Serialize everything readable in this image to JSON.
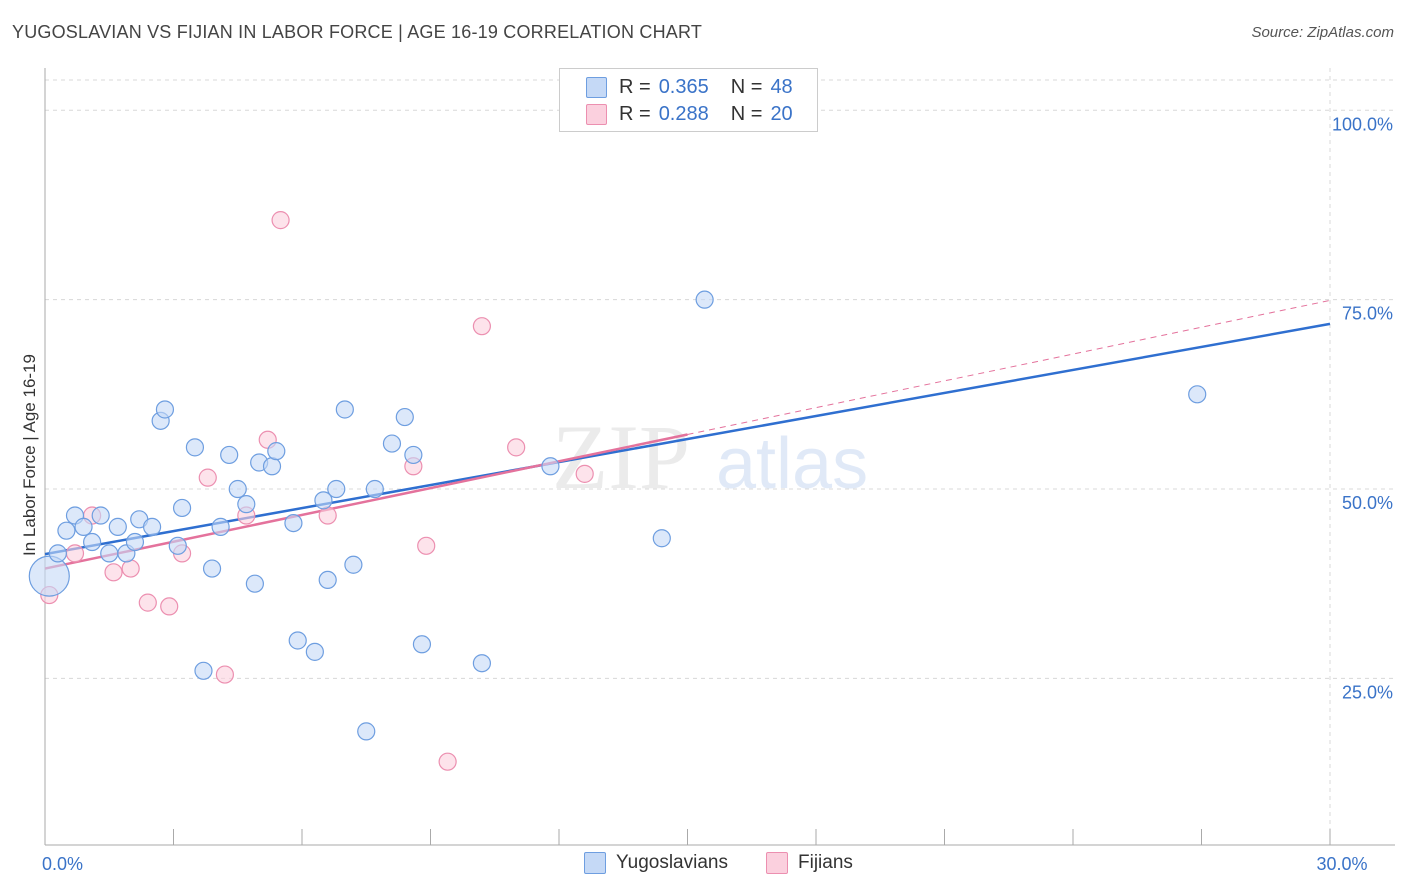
{
  "header": {
    "title": "YUGOSLAVIAN VS FIJIAN IN LABOR FORCE | AGE 16-19 CORRELATION CHART",
    "source": "Source: ZipAtlas.com"
  },
  "watermark": {
    "zip": "ZIP",
    "atlas": "atlas"
  },
  "legend": {
    "rows": [
      {
        "r_label": "R =",
        "r_value": "0.365",
        "n_label": "N =",
        "n_value": "48"
      },
      {
        "r_label": "R =",
        "r_value": "0.288",
        "n_label": "N =",
        "n_value": "20"
      }
    ]
  },
  "colors": {
    "blue_fill": "#c5d9f6",
    "blue_stroke": "#6e9ee0",
    "blue_line": "#2f6fd0",
    "pink_fill": "#fbd0de",
    "pink_stroke": "#ec8fb0",
    "pink_line": "#e4729c",
    "axis_text": "#3a73c8",
    "grid": "#d8d8d8"
  },
  "chart_data": {
    "type": "scatter",
    "ylabel": "In Labor Force | Age 16-19",
    "xlabel": "",
    "xlim": [
      0,
      30
    ],
    "ylim": [
      3,
      104
    ],
    "x_tick_labels": [
      {
        "value": 0,
        "label": "0.0%"
      },
      {
        "value": 30,
        "label": "30.0%"
      }
    ],
    "y_tick_labels": [
      {
        "value": 25,
        "label": "25.0%"
      },
      {
        "value": 50,
        "label": "50.0%"
      },
      {
        "value": 75,
        "label": "75.0%"
      },
      {
        "value": 100,
        "label": "100.0%"
      }
    ],
    "grid": true,
    "legend_position": "bottom-center",
    "series": [
      {
        "name": "Yugoslavians",
        "color": "blue",
        "points": [
          {
            "x": 0.1,
            "y": 38.5,
            "big": true
          },
          {
            "x": 0.3,
            "y": 41.5
          },
          {
            "x": 0.5,
            "y": 44.5
          },
          {
            "x": 0.7,
            "y": 46.5
          },
          {
            "x": 0.9,
            "y": 45
          },
          {
            "x": 1.1,
            "y": 43
          },
          {
            "x": 1.3,
            "y": 46.5
          },
          {
            "x": 1.5,
            "y": 41.5
          },
          {
            "x": 1.7,
            "y": 45
          },
          {
            "x": 1.9,
            "y": 41.5
          },
          {
            "x": 2.1,
            "y": 43
          },
          {
            "x": 2.2,
            "y": 46
          },
          {
            "x": 2.5,
            "y": 45
          },
          {
            "x": 2.7,
            "y": 59
          },
          {
            "x": 2.8,
            "y": 60.5
          },
          {
            "x": 3.1,
            "y": 42.5
          },
          {
            "x": 3.2,
            "y": 47.5
          },
          {
            "x": 3.5,
            "y": 55.5
          },
          {
            "x": 3.7,
            "y": 26
          },
          {
            "x": 3.9,
            "y": 39.5
          },
          {
            "x": 4.1,
            "y": 45
          },
          {
            "x": 4.3,
            "y": 54.5
          },
          {
            "x": 4.5,
            "y": 50
          },
          {
            "x": 4.7,
            "y": 48
          },
          {
            "x": 4.9,
            "y": 37.5
          },
          {
            "x": 5.0,
            "y": 53.5
          },
          {
            "x": 5.3,
            "y": 53
          },
          {
            "x": 5.4,
            "y": 55
          },
          {
            "x": 5.8,
            "y": 45.5
          },
          {
            "x": 5.9,
            "y": 30
          },
          {
            "x": 6.3,
            "y": 28.5
          },
          {
            "x": 6.5,
            "y": 48.5
          },
          {
            "x": 6.6,
            "y": 38
          },
          {
            "x": 6.8,
            "y": 50
          },
          {
            "x": 7.0,
            "y": 60.5
          },
          {
            "x": 7.2,
            "y": 40
          },
          {
            "x": 7.5,
            "y": 18
          },
          {
            "x": 7.7,
            "y": 50
          },
          {
            "x": 8.1,
            "y": 56
          },
          {
            "x": 8.4,
            "y": 59.5
          },
          {
            "x": 8.6,
            "y": 54.5
          },
          {
            "x": 8.8,
            "y": 29.5
          },
          {
            "x": 10.2,
            "y": 27
          },
          {
            "x": 11.8,
            "y": 53
          },
          {
            "x": 13.9,
            "y": 100.5
          },
          {
            "x": 14.4,
            "y": 43.5
          },
          {
            "x": 15.4,
            "y": 75
          },
          {
            "x": 26.9,
            "y": 62.5
          }
        ],
        "trend": {
          "x": [
            0,
            30
          ],
          "y": [
            41.4,
            71.8
          ]
        }
      },
      {
        "name": "Fijians",
        "color": "pink",
        "points": [
          {
            "x": 0.1,
            "y": 36
          },
          {
            "x": 0.7,
            "y": 41.5
          },
          {
            "x": 1.1,
            "y": 46.5
          },
          {
            "x": 1.6,
            "y": 39
          },
          {
            "x": 2.0,
            "y": 39.5
          },
          {
            "x": 2.4,
            "y": 35
          },
          {
            "x": 2.9,
            "y": 34.5
          },
          {
            "x": 3.2,
            "y": 41.5
          },
          {
            "x": 3.8,
            "y": 51.5
          },
          {
            "x": 4.2,
            "y": 25.5
          },
          {
            "x": 4.7,
            "y": 46.5
          },
          {
            "x": 5.2,
            "y": 56.5
          },
          {
            "x": 5.5,
            "y": 85.5
          },
          {
            "x": 6.6,
            "y": 46.5
          },
          {
            "x": 8.6,
            "y": 53
          },
          {
            "x": 8.9,
            "y": 42.5
          },
          {
            "x": 9.4,
            "y": 14
          },
          {
            "x": 10.2,
            "y": 71.5
          },
          {
            "x": 11.0,
            "y": 55.5
          },
          {
            "x": 12.6,
            "y": 52
          }
        ],
        "trend": {
          "x": [
            0,
            15
          ],
          "y": [
            39.5,
            57.2
          ]
        },
        "trend_extension": {
          "x": [
            15,
            30
          ],
          "y": [
            57.2,
            74.9
          ]
        }
      }
    ]
  }
}
